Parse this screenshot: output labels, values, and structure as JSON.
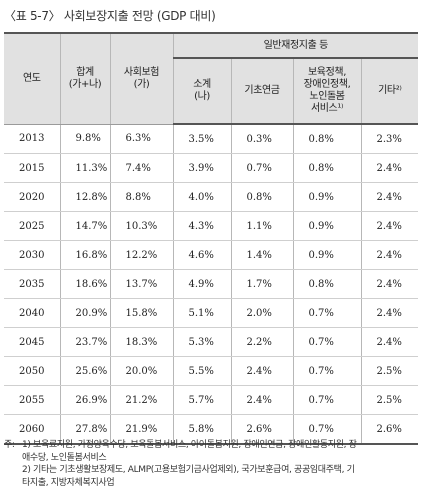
{
  "title": "〈표 5-7〉 사회보장지출 전망 (GDP 대비)",
  "table": {
    "group_header": "일반재정지출 등",
    "headers": {
      "year": "연도",
      "total": [
        "합계",
        "(가+나)"
      ],
      "social_insurance": [
        "사회보험",
        "(가)"
      ],
      "subtotal": [
        "소계",
        "(나)"
      ],
      "basic_pension": "기초연금",
      "childcare": [
        "보육정책,",
        "장애인정책,",
        "노인돌봄",
        "서비스¹⁾"
      ],
      "other": "기타²⁾"
    },
    "rows": [
      {
        "year": "2013",
        "total": "9.8%",
        "si": "6.3%",
        "sub": "3.5%",
        "bp": "0.3%",
        "cc": "0.8%",
        "other": "2.3%"
      },
      {
        "year": "2015",
        "total": "11.3%",
        "si": "7.4%",
        "sub": "3.9%",
        "bp": "0.7%",
        "cc": "0.8%",
        "other": "2.4%"
      },
      {
        "year": "2020",
        "total": "12.8%",
        "si": "8.8%",
        "sub": "4.0%",
        "bp": "0.8%",
        "cc": "0.9%",
        "other": "2.4%"
      },
      {
        "year": "2025",
        "total": "14.7%",
        "si": "10.3%",
        "sub": "4.3%",
        "bp": "1.1%",
        "cc": "0.9%",
        "other": "2.4%"
      },
      {
        "year": "2030",
        "total": "16.8%",
        "si": "12.2%",
        "sub": "4.6%",
        "bp": "1.4%",
        "cc": "0.9%",
        "other": "2.4%"
      },
      {
        "year": "2035",
        "total": "18.6%",
        "si": "13.7%",
        "sub": "4.9%",
        "bp": "1.7%",
        "cc": "0.8%",
        "other": "2.4%"
      },
      {
        "year": "2040",
        "total": "20.9%",
        "si": "15.8%",
        "sub": "5.1%",
        "bp": "2.0%",
        "cc": "0.7%",
        "other": "2.4%"
      },
      {
        "year": "2045",
        "total": "23.7%",
        "si": "18.3%",
        "sub": "5.3%",
        "bp": "2.2%",
        "cc": "0.7%",
        "other": "2.4%"
      },
      {
        "year": "2050",
        "total": "25.6%",
        "si": "20.0%",
        "sub": "5.5%",
        "bp": "2.4%",
        "cc": "0.7%",
        "other": "2.5%"
      },
      {
        "year": "2055",
        "total": "26.9%",
        "si": "21.2%",
        "sub": "5.7%",
        "bp": "2.4%",
        "cc": "0.7%",
        "other": "2.5%"
      },
      {
        "year": "2060",
        "total": "27.8%",
        "si": "21.9%",
        "sub": "5.8%",
        "bp": "2.6%",
        "cc": "0.7%",
        "other": "2.6%"
      }
    ]
  },
  "notes": {
    "prefix": "주:",
    "note1": [
      "1) 보육료지원, 가정양육수당, 보육돌봄서비스, 아이돌봄지원, 장애인연금, 장애인활동지원, 장",
      "애수당, 노인돌봄서비스"
    ],
    "note2": [
      "2) 기타는 기초생활보장제도, ALMP(고용보험기금사업제외), 국가보훈급여, 공공임대주택, 기",
      "타지출, 지방자체복지사업"
    ]
  }
}
